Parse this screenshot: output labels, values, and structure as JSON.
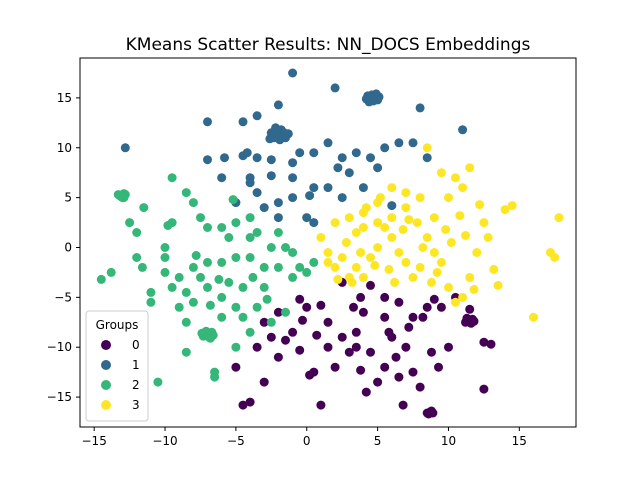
{
  "chart_data": {
    "type": "scatter",
    "title": "KMeans Scatter Results: NN_DOCS Embeddings",
    "xlabel": "",
    "ylabel": "",
    "xlim": [
      -16,
      19
    ],
    "ylim": [
      -18,
      19
    ],
    "xticks": [
      -15,
      -10,
      -5,
      0,
      5,
      10,
      15
    ],
    "yticks": [
      -15,
      -10,
      -5,
      0,
      5,
      10,
      15
    ],
    "grid": false,
    "legend": {
      "title": "Groups",
      "placement": "bottom-left"
    },
    "series": [
      {
        "name": "0",
        "color": "#440154",
        "points": [
          [
            8.7,
            -16.5
          ],
          [
            8.5,
            -16.6
          ],
          [
            8.8,
            -16.4
          ],
          [
            8.6,
            -16.7
          ],
          [
            8.9,
            -16.6
          ],
          [
            11.4,
            -7.4
          ],
          [
            11.7,
            -7.2
          ],
          [
            11.2,
            -7.5
          ],
          [
            11.6,
            -7.6
          ],
          [
            11.3,
            -7.1
          ],
          [
            11.8,
            -7.4
          ],
          [
            11.5,
            -7.3
          ],
          [
            2.5,
            -3.5
          ],
          [
            3.3,
            -6
          ],
          [
            3.8,
            -5
          ],
          [
            4.5,
            -3.8
          ],
          [
            5.5,
            -5
          ],
          [
            6.5,
            -5.5
          ],
          [
            7.5,
            -7
          ],
          [
            8.2,
            -7
          ],
          [
            9.5,
            -6
          ],
          [
            10.5,
            -5
          ],
          [
            12.5,
            -9.5
          ],
          [
            13,
            -9.7
          ],
          [
            12.5,
            -14.2
          ],
          [
            9.3,
            -12
          ],
          [
            8.8,
            -10.5
          ],
          [
            8,
            -14
          ],
          [
            7.5,
            -12.5
          ],
          [
            6.5,
            -13
          ],
          [
            5.5,
            -12
          ],
          [
            5,
            -13.5
          ],
          [
            4.5,
            -10.5
          ],
          [
            3.5,
            -10
          ],
          [
            2.5,
            -9
          ],
          [
            1.5,
            -10
          ],
          [
            0.5,
            -12.5
          ],
          [
            1,
            -15.8
          ],
          [
            -0.5,
            -10.3
          ],
          [
            -1,
            -8.5
          ],
          [
            -1.5,
            -9.3
          ],
          [
            -2,
            -11
          ],
          [
            -3,
            -13.5
          ],
          [
            -3.5,
            -10
          ],
          [
            -4,
            -15.5
          ],
          [
            -4.5,
            -15.8
          ],
          [
            -5,
            -12
          ],
          [
            -3,
            -7.5
          ],
          [
            -2,
            -6.5
          ],
          [
            0,
            -6
          ],
          [
            -0.5,
            -5.2
          ],
          [
            1,
            -5.8
          ],
          [
            3.5,
            -8.5
          ],
          [
            6,
            -9
          ],
          [
            7,
            -10
          ],
          [
            6.8,
            -15.8
          ],
          [
            4.2,
            -14.5
          ],
          [
            3.8,
            -12.3
          ],
          [
            3,
            -10.5
          ],
          [
            10,
            -10
          ],
          [
            5.8,
            -8.5
          ],
          [
            6.3,
            -11
          ],
          [
            1.5,
            -7.5
          ],
          [
            -0.3,
            -7.3
          ],
          [
            0.7,
            -8.8
          ],
          [
            9,
            -5.2
          ],
          [
            11.5,
            -6.2
          ],
          [
            4,
            -6.5
          ],
          [
            2,
            -12
          ],
          [
            -2.5,
            -9
          ],
          [
            5.5,
            -7
          ],
          [
            7.2,
            -8
          ],
          [
            8.5,
            -6
          ],
          [
            0.2,
            -12.8
          ]
        ]
      },
      {
        "name": "1",
        "color": "#31688e",
        "points": [
          [
            4.5,
            15
          ],
          [
            4.8,
            15.1
          ],
          [
            4.2,
            14.9
          ],
          [
            5,
            14.8
          ],
          [
            4.6,
            15.3
          ],
          [
            4.3,
            15.2
          ],
          [
            5.1,
            15.1
          ],
          [
            4.7,
            14.7
          ],
          [
            4.4,
            14.6
          ],
          [
            4.9,
            15.4
          ],
          [
            -2,
            11.3
          ],
          [
            -1.6,
            11.5
          ],
          [
            -2.3,
            11
          ],
          [
            -1.8,
            11.8
          ],
          [
            -1.5,
            11
          ],
          [
            -2.5,
            11.5
          ],
          [
            -2.1,
            11.7
          ],
          [
            -1.3,
            11.4
          ],
          [
            -1.9,
            10.8
          ],
          [
            -2.6,
            10.9
          ],
          [
            -1.7,
            11.2
          ],
          [
            -2.2,
            12
          ],
          [
            -1,
            17.5
          ],
          [
            2,
            16
          ],
          [
            8,
            14
          ],
          [
            11,
            11.8
          ],
          [
            -3.5,
            13.2
          ],
          [
            -2,
            14.3
          ],
          [
            -4.5,
            12.6
          ],
          [
            -7,
            12.6
          ],
          [
            -12.8,
            10
          ],
          [
            -7,
            8.8
          ],
          [
            -5.8,
            9
          ],
          [
            -4.5,
            9.2
          ],
          [
            -3.5,
            9
          ],
          [
            -2.5,
            8.8
          ],
          [
            -1,
            8.5
          ],
          [
            -0.5,
            9.5
          ],
          [
            0.5,
            9.5
          ],
          [
            1.5,
            10.5
          ],
          [
            2.5,
            9
          ],
          [
            3.5,
            9.5
          ],
          [
            4.5,
            9
          ],
          [
            5.5,
            10
          ],
          [
            6.5,
            10.5
          ],
          [
            7.5,
            10.5
          ],
          [
            -6,
            7
          ],
          [
            -4,
            7
          ],
          [
            -2.5,
            7.2
          ],
          [
            -1,
            7
          ],
          [
            0.5,
            6
          ],
          [
            1.5,
            6
          ],
          [
            -5,
            4.5
          ],
          [
            -3,
            4
          ],
          [
            -2,
            4.5
          ],
          [
            -1,
            5
          ],
          [
            0,
            3
          ],
          [
            0.5,
            2.5
          ],
          [
            2.5,
            5
          ],
          [
            3,
            7.5
          ],
          [
            4,
            6
          ],
          [
            -3.5,
            5.5
          ],
          [
            -2,
            3
          ],
          [
            -4,
            6.5
          ],
          [
            -4.2,
            9.5
          ],
          [
            0.2,
            5.2
          ],
          [
            2.2,
            8
          ],
          [
            5,
            8
          ],
          [
            8.5,
            9
          ],
          [
            6,
            4.2
          ]
        ]
      },
      {
        "name": "2",
        "color": "#35b779",
        "points": [
          [
            -13.2,
            5.2
          ],
          [
            -12.9,
            5.4
          ],
          [
            -13.1,
            5.1
          ],
          [
            -12.8,
            5.3
          ],
          [
            -13,
            5
          ],
          [
            -13.3,
            5.3
          ],
          [
            -12.9,
            5
          ],
          [
            -7,
            -8.7
          ],
          [
            -6.7,
            -8.5
          ],
          [
            -7.3,
            -8.9
          ],
          [
            -6.9,
            -9
          ],
          [
            -7.1,
            -8.4
          ],
          [
            -6.6,
            -8.8
          ],
          [
            -7.4,
            -8.6
          ],
          [
            -6.8,
            -9.1
          ],
          [
            -14.5,
            -3.2
          ],
          [
            -13.8,
            -2.5
          ],
          [
            -12,
            -1
          ],
          [
            -11,
            -4.5
          ],
          [
            -10,
            -2.5
          ],
          [
            -9.5,
            -4
          ],
          [
            -9,
            -6
          ],
          [
            -8.5,
            -4.5
          ],
          [
            -8,
            -5.5
          ],
          [
            -7.5,
            -3
          ],
          [
            -7,
            -4
          ],
          [
            -6,
            -5
          ],
          [
            -5,
            -6
          ],
          [
            -4.5,
            -7
          ],
          [
            -4,
            -8.5
          ],
          [
            -5,
            -10
          ],
          [
            -6.5,
            -12.5
          ],
          [
            -6.5,
            -13
          ],
          [
            -8.5,
            -10.5
          ],
          [
            -10.5,
            -13.5
          ],
          [
            -12.5,
            2.5
          ],
          [
            -11.5,
            4
          ],
          [
            -10,
            0
          ],
          [
            -9.5,
            2.5
          ],
          [
            -8.5,
            5.5
          ],
          [
            -7.5,
            3
          ],
          [
            -6,
            2
          ],
          [
            -5,
            2.5
          ],
          [
            -4,
            3
          ],
          [
            -3.5,
            1.5
          ],
          [
            -2.5,
            0
          ],
          [
            -2,
            1.5
          ],
          [
            -1.5,
            0
          ],
          [
            -1,
            -0.5
          ],
          [
            -0.5,
            -2
          ],
          [
            -1,
            -3
          ],
          [
            -2,
            -2
          ],
          [
            -3,
            -2
          ],
          [
            -4,
            -1
          ],
          [
            -5,
            -1
          ],
          [
            -6,
            -1.5
          ],
          [
            -7,
            -1.5
          ],
          [
            -8,
            -2
          ],
          [
            -9,
            -3
          ],
          [
            -10,
            -1
          ],
          [
            -11,
            -5.5
          ],
          [
            -12,
            1.5
          ],
          [
            -9.5,
            7
          ],
          [
            -8,
            4.5
          ],
          [
            -7,
            2
          ],
          [
            -5.5,
            1
          ],
          [
            -3,
            -4
          ],
          [
            -2.5,
            -7.5
          ],
          [
            -5.5,
            -3.5
          ],
          [
            -8.5,
            -7.5
          ],
          [
            -6,
            -7
          ],
          [
            -4.5,
            -4
          ],
          [
            -3.5,
            -6
          ],
          [
            0.5,
            -1.5
          ],
          [
            0,
            -2.5
          ],
          [
            -1.5,
            -6.5
          ],
          [
            -6.8,
            -5.8
          ],
          [
            -4,
            1
          ],
          [
            -9.8,
            2.2
          ],
          [
            -11.6,
            -2
          ],
          [
            -7.8,
            -0.8
          ],
          [
            -6.2,
            -3.2
          ],
          [
            -2.8,
            -5.2
          ],
          [
            -3.8,
            -3
          ],
          [
            -5.2,
            4.8
          ]
        ]
      },
      {
        "name": "3",
        "color": "#fde725",
        "points": [
          [
            17.8,
            3
          ],
          [
            17.2,
            -0.5
          ],
          [
            17.5,
            -1
          ],
          [
            16,
            -7
          ],
          [
            14.5,
            4.2
          ],
          [
            14,
            3.8
          ],
          [
            13.5,
            -3.8
          ],
          [
            12.5,
            2.5
          ],
          [
            12,
            -0.5
          ],
          [
            11.5,
            -3
          ],
          [
            11,
            -5
          ],
          [
            10.5,
            -5.5
          ],
          [
            10,
            -4
          ],
          [
            9.5,
            -1.5
          ],
          [
            9,
            -0.5
          ],
          [
            8.5,
            1
          ],
          [
            8,
            -2
          ],
          [
            7.5,
            -3
          ],
          [
            7,
            -1.5
          ],
          [
            6.5,
            -0.5
          ],
          [
            6,
            1
          ],
          [
            5.5,
            2
          ],
          [
            5,
            0
          ],
          [
            4.5,
            -1
          ],
          [
            4,
            -3
          ],
          [
            3.5,
            -2
          ],
          [
            3,
            -3
          ],
          [
            2.5,
            -1
          ],
          [
            2,
            -2
          ],
          [
            1.5,
            -0.5
          ],
          [
            1,
            1
          ],
          [
            3,
            3
          ],
          [
            4,
            2
          ],
          [
            5,
            2.5
          ],
          [
            6,
            3
          ],
          [
            7,
            4
          ],
          [
            8,
            5
          ],
          [
            9,
            3
          ],
          [
            10,
            5
          ],
          [
            11,
            6
          ],
          [
            11.5,
            8
          ],
          [
            10.5,
            7
          ],
          [
            9.5,
            7.5
          ],
          [
            8.5,
            10
          ],
          [
            7,
            5.5
          ],
          [
            6,
            6
          ],
          [
            5,
            4.5
          ],
          [
            4,
            3.5
          ],
          [
            2,
            2.5
          ],
          [
            1.5,
            -1.5
          ],
          [
            2.8,
            0.5
          ],
          [
            3.8,
            -0.5
          ],
          [
            5.8,
            -2.2
          ],
          [
            6.8,
            1.8
          ],
          [
            7.8,
            2.5
          ],
          [
            9.8,
            1.8
          ],
          [
            10.8,
            3.2
          ],
          [
            12.8,
            1
          ],
          [
            13.2,
            -2.2
          ],
          [
            11.8,
            -4.2
          ],
          [
            8.8,
            -3.5
          ],
          [
            4.8,
            -1.8
          ],
          [
            3.2,
            -3.5
          ],
          [
            6.2,
            -3.5
          ],
          [
            9.2,
            -2.5
          ],
          [
            10.2,
            0.5
          ],
          [
            7.2,
            2.8
          ],
          [
            5.2,
            5
          ],
          [
            8.2,
            0
          ],
          [
            11.2,
            1.2
          ],
          [
            12.2,
            4.3
          ],
          [
            3.5,
            1.5
          ],
          [
            2.2,
            -3.2
          ],
          [
            4.2,
            4
          ]
        ]
      }
    ]
  }
}
